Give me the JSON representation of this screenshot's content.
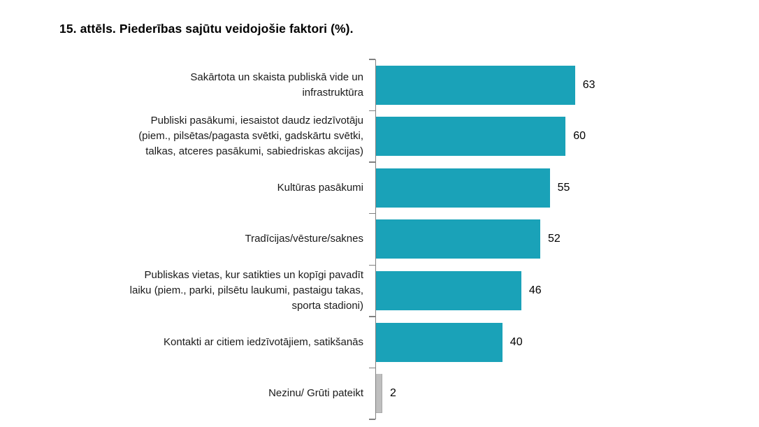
{
  "title": "15. attēls. Piederības sajūtu veidojošie faktori (%).",
  "chart_data": {
    "type": "bar",
    "orientation": "horizontal",
    "title": "15. attēls. Piederības sajūtu veidojošie faktori (%).",
    "categories": [
      "Sakārtota un skaista publiskā vide un\ninfrastruktūra",
      "Publiski pasākumi, iesaistot daudz iedzīvotāju\n(piem., pilsētas/pagasta svētki, gadskārtu svētki,\ntalkas, atceres pasākumi, sabiedriskas akcijas)",
      "Kultūras pasākumi",
      "Tradīcijas/vēsture/saknes",
      "Publiskas vietas, kur satikties un kopīgi pavadīt\nlaiku (piem., parki, pilsētu laukumi, pastaigu takas,\nsporta stadioni)",
      "Kontakti ar citiem iedzīvotājiem, satikšanās",
      "Nezinu/ Grūti pateikt"
    ],
    "values": [
      63,
      60,
      55,
      52,
      46,
      40,
      2
    ],
    "bar_colors": [
      "#1AA2B8",
      "#1AA2B8",
      "#1AA2B8",
      "#1AA2B8",
      "#1AA2B8",
      "#1AA2B8",
      "#BFBFBF"
    ],
    "unit": "%",
    "xlim": [
      0,
      70
    ],
    "grid": false,
    "legend": false,
    "axis_line": true,
    "data_labels": "outside-end"
  },
  "colors": {
    "bar_teal": "#1AA2B8",
    "bar_gray": "#BFBFBF",
    "axis_line": "#808080",
    "text": "#000000",
    "background": "#FFFFFF"
  }
}
